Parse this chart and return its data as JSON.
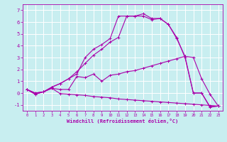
{
  "xlabel": "Windchill (Refroidissement éolien,°C)",
  "xlim": [
    -0.5,
    23.5
  ],
  "ylim": [
    -1.5,
    7.5
  ],
  "xticks": [
    0,
    1,
    2,
    3,
    4,
    5,
    6,
    7,
    8,
    9,
    10,
    11,
    12,
    13,
    14,
    15,
    16,
    17,
    18,
    19,
    20,
    21,
    22,
    23
  ],
  "yticks": [
    -1,
    0,
    1,
    2,
    3,
    4,
    5,
    6,
    7
  ],
  "bg_color": "#c8eef0",
  "line_color": "#aa00aa",
  "grid_color": "#ffffff",
  "series": [
    [
      0.3,
      0.0,
      0.1,
      0.4,
      0.3,
      0.3,
      1.4,
      1.3,
      1.6,
      1.0,
      1.5,
      1.6,
      1.8,
      1.9,
      2.1,
      2.3,
      2.5,
      2.7,
      2.9,
      3.1,
      3.0,
      1.2,
      -0.1,
      -1.1
    ],
    [
      0.3,
      -0.1,
      0.1,
      0.5,
      0.8,
      1.2,
      1.8,
      2.5,
      3.2,
      3.7,
      4.3,
      4.7,
      6.5,
      6.5,
      6.7,
      6.3,
      6.3,
      5.8,
      4.6,
      3.1,
      0.0,
      0.0,
      -1.15,
      -1.1
    ],
    [
      0.3,
      -0.1,
      0.1,
      0.5,
      0.8,
      1.2,
      1.6,
      3.0,
      3.7,
      4.1,
      4.6,
      6.5,
      6.5,
      6.5,
      6.5,
      6.2,
      6.3,
      5.8,
      4.7,
      3.0,
      0.0,
      0.0,
      -1.2,
      -1.1
    ],
    [
      0.3,
      0.0,
      0.1,
      0.4,
      -0.05,
      -0.1,
      -0.15,
      -0.2,
      -0.3,
      -0.35,
      -0.4,
      -0.5,
      -0.55,
      -0.6,
      -0.65,
      -0.7,
      -0.75,
      -0.8,
      -0.85,
      -0.9,
      -0.95,
      -1.0,
      -1.05,
      -1.1
    ]
  ]
}
